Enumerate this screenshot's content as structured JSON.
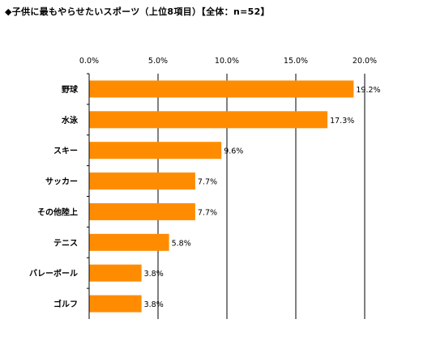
{
  "chart_title": "◆子供に最もやらせたいスポーツ（上位8項目）【全体：n=52】",
  "chart_data": {
    "type": "bar",
    "orientation": "horizontal",
    "title": "◆子供に最もやらせたいスポーツ（上位8項目）【全体：n=52】",
    "categories": [
      "野球",
      "水泳",
      "スキー",
      "サッカー",
      "その他陸上",
      "テニス",
      "バレーボール",
      "ゴルフ"
    ],
    "values": [
      19.2,
      17.3,
      9.6,
      7.7,
      7.7,
      5.8,
      3.8,
      3.8
    ],
    "value_labels": [
      "19.2%",
      "17.3%",
      "9.6%",
      "7.7%",
      "7.7%",
      "5.8%",
      "3.8%",
      "3.8%"
    ],
    "xlim": [
      0,
      20
    ],
    "x_ticks": [
      "0.0%",
      "5.0%",
      "10.0%",
      "15.0%",
      "20.0%"
    ],
    "x_tick_values": [
      0,
      5,
      10,
      15,
      20
    ],
    "axis_position": "top",
    "grid": true,
    "bar_color": "#ff8c00"
  }
}
